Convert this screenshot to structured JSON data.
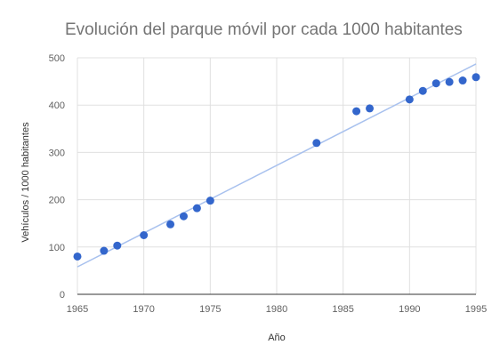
{
  "chart_data": {
    "type": "scatter",
    "title": "Evolución del parque móvil por cada 1000 habitantes",
    "xlabel": "Año",
    "ylabel": "Vehículos / 1000 habitantes",
    "xlim": [
      1965,
      1995
    ],
    "ylim": [
      0,
      500
    ],
    "x_ticks": [
      "1965",
      "1970",
      "1975",
      "1980",
      "1985",
      "1990",
      "1995"
    ],
    "y_ticks": [
      "0",
      "100",
      "200",
      "300",
      "400",
      "500"
    ],
    "grid": true,
    "legend": "none",
    "point_color": "#3366cc",
    "trendline_color": "#a8c1ee",
    "trendline": {
      "x": [
        1965,
        1995
      ],
      "y": [
        58,
        487
      ]
    },
    "x": [
      1965,
      1967,
      1968,
      1970,
      1972,
      1973,
      1974,
      1975,
      1983,
      1986,
      1987,
      1990,
      1991,
      1992,
      1993,
      1994,
      1995
    ],
    "y": [
      80,
      92,
      103,
      125,
      148,
      165,
      182,
      198,
      320,
      387,
      393,
      412,
      430,
      446,
      449,
      452,
      459
    ]
  }
}
